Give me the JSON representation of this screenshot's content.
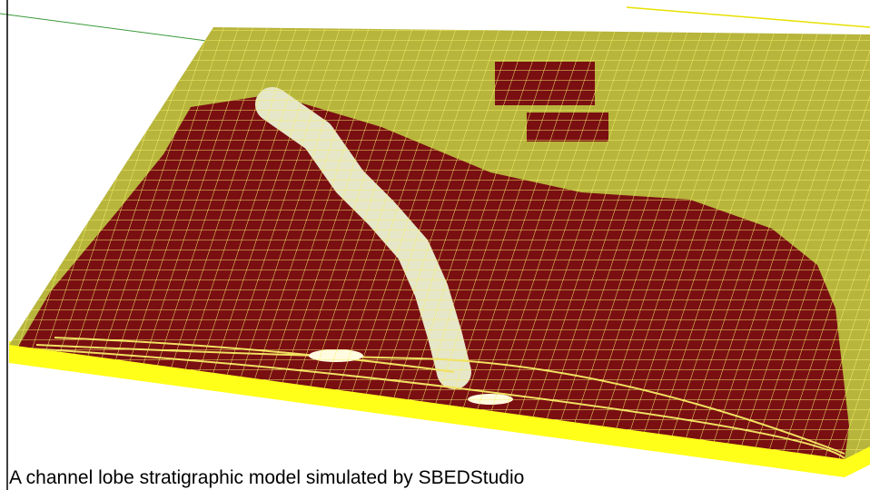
{
  "caption": "A channel lobe stratigraphic model simulated by SBEDStudio"
}
